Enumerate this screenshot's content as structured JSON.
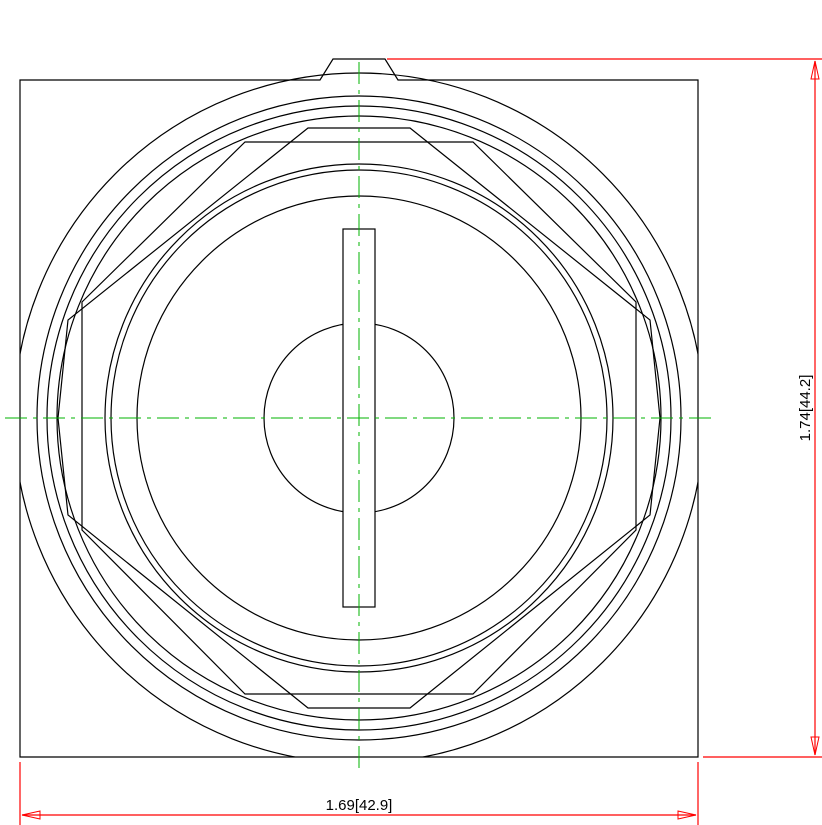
{
  "dimensions": {
    "width_label": "1.69[42.9]",
    "height_label": "1.74[44.2]"
  },
  "colors": {
    "outline": "#000000",
    "centerline": "#00b300",
    "dimension": "#ff0000"
  }
}
